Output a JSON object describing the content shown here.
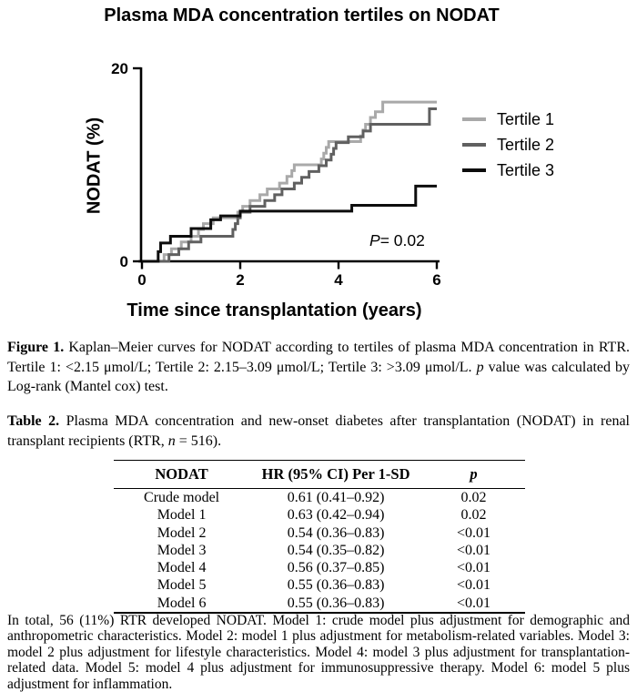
{
  "title": "Plasma MDA concentration tertiles on NODAT",
  "chart_data": {
    "type": "line",
    "subtype": "kaplan-meier-step",
    "title": "Plasma MDA concentration tertiles on NODAT",
    "xlabel": "Time since transplantation (years)",
    "ylabel": "NODAT (%)",
    "xlim": [
      0,
      6
    ],
    "ylim": [
      0,
      20
    ],
    "x_ticks": [
      0,
      2,
      4,
      6
    ],
    "y_ticks": [
      0,
      20
    ],
    "grid": false,
    "legend_position": "right",
    "annotation": {
      "p_label": "P",
      "p_value": "= 0.02"
    },
    "series": [
      {
        "name": "Tertile 1",
        "color": "#a9a9a9",
        "end": 6.0,
        "steps": [
          [
            0.45,
            0.7
          ],
          [
            0.6,
            1.3
          ],
          [
            0.8,
            2.0
          ],
          [
            1.0,
            2.6
          ],
          [
            1.15,
            3.3
          ],
          [
            1.25,
            3.9
          ],
          [
            1.45,
            4.5
          ],
          [
            1.95,
            5.1
          ],
          [
            2.05,
            5.7
          ],
          [
            2.2,
            6.3
          ],
          [
            2.4,
            6.9
          ],
          [
            2.55,
            7.5
          ],
          [
            2.8,
            8.1
          ],
          [
            2.95,
            8.8
          ],
          [
            3.05,
            9.4
          ],
          [
            3.1,
            10.0
          ],
          [
            3.65,
            10.6
          ],
          [
            3.7,
            11.2
          ],
          [
            3.75,
            11.8
          ],
          [
            3.8,
            12.4
          ],
          [
            4.45,
            13.0
          ],
          [
            4.5,
            13.6
          ],
          [
            4.55,
            14.2
          ],
          [
            4.65,
            14.9
          ],
          [
            4.75,
            15.5
          ],
          [
            4.9,
            16.5
          ]
        ]
      },
      {
        "name": "Tertile 2",
        "color": "#606060",
        "end": 6.0,
        "steps": [
          [
            0.55,
            0.7
          ],
          [
            0.75,
            1.3
          ],
          [
            0.95,
            2.0
          ],
          [
            1.2,
            2.6
          ],
          [
            1.85,
            3.3
          ],
          [
            1.9,
            3.9
          ],
          [
            1.95,
            4.5
          ],
          [
            2.0,
            5.1
          ],
          [
            2.2,
            5.7
          ],
          [
            2.5,
            6.3
          ],
          [
            2.7,
            6.9
          ],
          [
            2.85,
            7.5
          ],
          [
            3.1,
            8.1
          ],
          [
            3.25,
            8.7
          ],
          [
            3.4,
            9.3
          ],
          [
            3.6,
            9.9
          ],
          [
            3.75,
            10.5
          ],
          [
            3.85,
            11.1
          ],
          [
            3.9,
            11.7
          ],
          [
            3.95,
            12.3
          ],
          [
            4.2,
            12.9
          ],
          [
            4.5,
            13.5
          ],
          [
            4.65,
            14.2
          ],
          [
            5.85,
            15.8
          ]
        ]
      },
      {
        "name": "Tertile 3",
        "color": "#0d0d0d",
        "end": 6.0,
        "steps": [
          [
            0.33,
            1.0
          ],
          [
            0.38,
            1.9
          ],
          [
            0.58,
            2.6
          ],
          [
            1.0,
            3.4
          ],
          [
            1.4,
            4.3
          ],
          [
            1.6,
            4.7
          ],
          [
            2.0,
            5.2
          ],
          [
            4.27,
            5.8
          ],
          [
            5.57,
            7.8
          ]
        ]
      }
    ]
  },
  "figure_caption": {
    "label": "Figure 1.",
    "text1": " Kaplan–Meier curves for NODAT according to tertiles of plasma MDA concentration in RTR. Tertile 1: <2.15 μmol/L; Tertile 2: 2.15–3.09 μmol/L; Tertile 3: >3.09 μmol/L. ",
    "p_italic": "p",
    "text2": " value was calculated by Log-rank (Mantel cox) test."
  },
  "table_caption": {
    "label": "Table 2.",
    "text1": " Plasma MDA concentration and new-onset diabetes after transplantation (NODAT) in renal transplant recipients (RTR, ",
    "n_italic": "n",
    "text2": " = 516)."
  },
  "table": {
    "headers": [
      "NODAT",
      "HR (95% CI) Per 1-SD",
      "p"
    ],
    "rows": [
      [
        "Crude model",
        "0.61 (0.41–0.92)",
        "0.02"
      ],
      [
        "Model 1",
        "0.63 (0.42–0.94)",
        "0.02"
      ],
      [
        "Model 2",
        "0.54 (0.36–0.83)",
        "<0.01"
      ],
      [
        "Model 3",
        "0.54 (0.35–0.82)",
        "<0.01"
      ],
      [
        "Model 4",
        "0.56 (0.37–0.85)",
        "<0.01"
      ],
      [
        "Model 5",
        "0.55 (0.36–0.83)",
        "<0.01"
      ],
      [
        "Model 6",
        "0.55 (0.36–0.83)",
        "<0.01"
      ]
    ]
  },
  "footnote": "In total, 56 (11%) RTR developed NODAT. Model 1:  crude model plus adjustment for demographic and anthropometric characteristics.  Model 2:  model 1 plus adjustment for metabolism-related variables.  Model 3: model 2 plus adjustment for lifestyle characteristics. Model 4: model 3 plus adjustment for transplantation-related data.  Model 5:  model 4 plus adjustment for immunosuppressive therapy.  Model 6:  model 5 plus adjustment for inflammation."
}
